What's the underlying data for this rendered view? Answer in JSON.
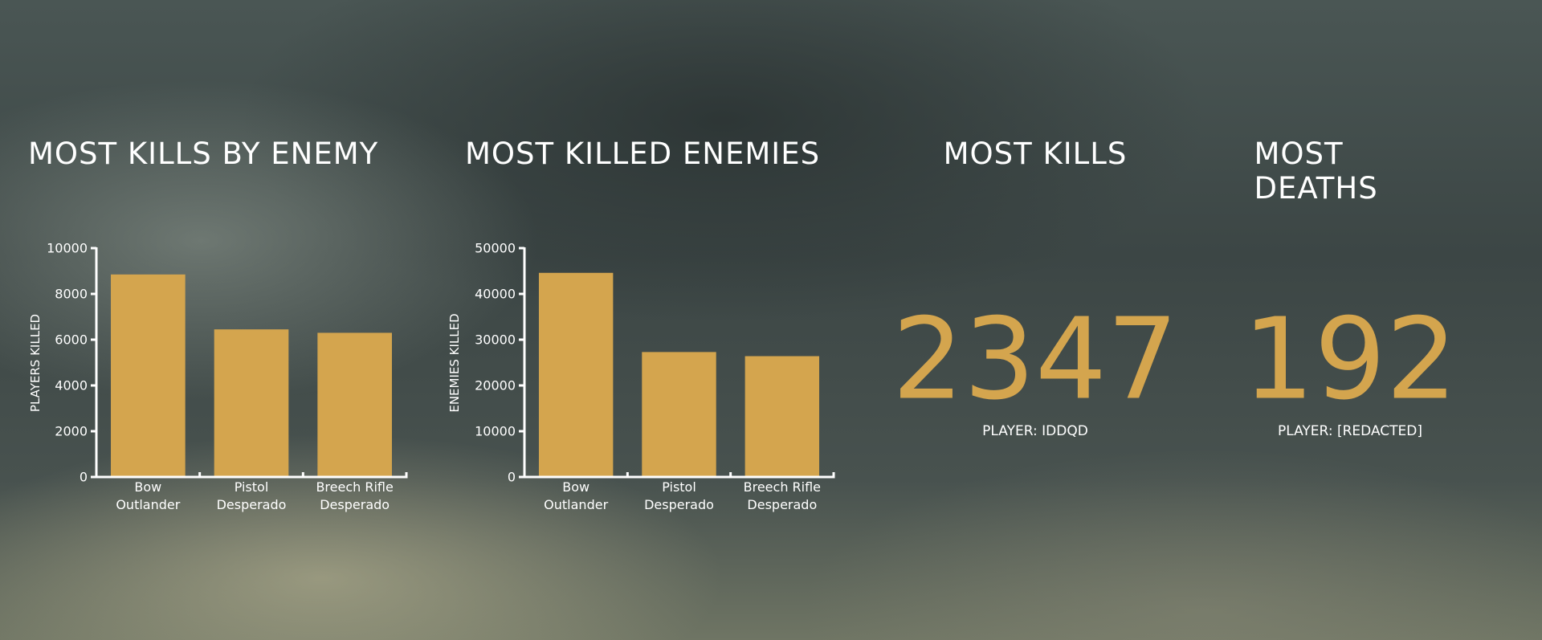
{
  "chart_data": [
    {
      "type": "bar",
      "title": "MOST KILLS BY ENEMY",
      "y_label": "PLAYERS KILLED",
      "categories": [
        "Bow\nOutlander",
        "Pistol\nDesperado",
        "Breech Rifle\nDesperado"
      ],
      "values": [
        8850,
        6450,
        6300
      ],
      "color": "#d4a54e",
      "ylim": [
        0,
        10000
      ],
      "yticks": [
        0,
        2000,
        4000,
        6000,
        8000,
        10000
      ]
    },
    {
      "type": "bar",
      "title": "MOST KILLED ENEMIES",
      "y_label": "ENEMIES KILLED",
      "categories": [
        "Bow\nOutlander",
        "Pistol\nDesperado",
        "Breech Rifle\nDesperado"
      ],
      "values": [
        44600,
        27300,
        26400
      ],
      "color": "#d4a54e",
      "ylim": [
        0,
        50000
      ],
      "yticks": [
        0,
        10000,
        20000,
        30000,
        40000,
        50000
      ]
    }
  ],
  "stats": [
    {
      "title": "MOST KILLS",
      "value": 2347,
      "label": "PLAYER: IDDQD"
    },
    {
      "title": "MOST DEATHS",
      "value": 192,
      "label": "PLAYER: [REDACTED]"
    }
  ]
}
